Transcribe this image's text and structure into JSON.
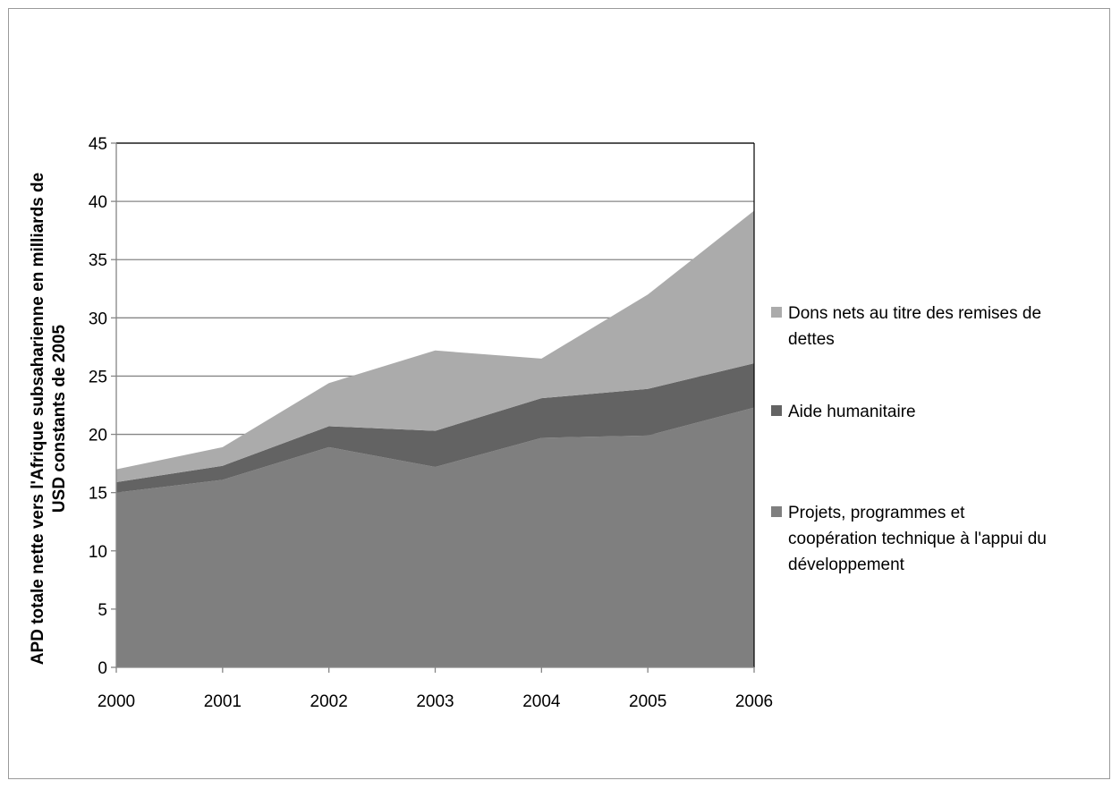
{
  "chart_data": {
    "type": "area",
    "stacked": true,
    "title": "",
    "xlabel": "",
    "ylabel_lines": [
      "APD totale nette vers l'Afrique subsaharienne  en milliards de",
      "USD constants de 2005"
    ],
    "x": [
      "2000",
      "2001",
      "2002",
      "2003",
      "2004",
      "2005",
      "2006"
    ],
    "ylim": [
      0,
      45
    ],
    "yticks": [
      "0",
      "5",
      "10",
      "15",
      "20",
      "25",
      "30",
      "35",
      "40",
      "45"
    ],
    "grid": true,
    "legend_position": "right",
    "series": [
      {
        "name": "Projets, programmes  et coopération technique à l'appui du développement",
        "legend_lines": [
          "Projets, programmes  et",
          "coopération technique à l'appui du",
          "développement"
        ],
        "color": "#7f7f7f",
        "values": [
          15.0,
          16.1,
          18.9,
          17.2,
          19.7,
          19.9,
          22.3
        ]
      },
      {
        "name": "Aide humanitaire",
        "legend_lines": [
          "Aide humanitaire"
        ],
        "color": "#636363",
        "values": [
          0.9,
          1.2,
          1.8,
          3.1,
          3.4,
          4.0,
          3.8
        ]
      },
      {
        "name": "Dons nets au titre des remises de dettes",
        "legend_lines": [
          "Dons nets au titre des remises de",
          "dettes"
        ],
        "color": "#ababab",
        "values": [
          1.1,
          1.6,
          3.7,
          6.9,
          3.4,
          8.1,
          13.1
        ]
      }
    ]
  }
}
